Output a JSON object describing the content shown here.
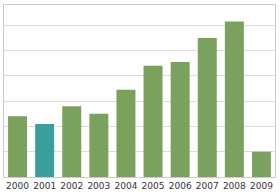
{
  "chart_data": {
    "type": "bar",
    "categories": [
      "2000",
      "2001",
      "2002",
      "2003",
      "2004",
      "2005",
      "2006",
      "2007",
      "2008",
      "2009"
    ],
    "values": [
      2.4,
      2.1,
      2.8,
      2.5,
      3.45,
      4.4,
      4.55,
      5.5,
      6.15,
      1.0
    ],
    "colors": [
      "#7ba25c",
      "#3a9e9c",
      "#7ba25c",
      "#7ba25c",
      "#7ba25c",
      "#7ba25c",
      "#7ba25c",
      "#7ba25c",
      "#7ba25c",
      "#7ba25c"
    ],
    "ylim": [
      0,
      6.8
    ],
    "yticks": [
      0,
      1,
      2,
      3,
      4,
      5,
      6
    ],
    "grid": true,
    "tick_labels": "x"
  }
}
